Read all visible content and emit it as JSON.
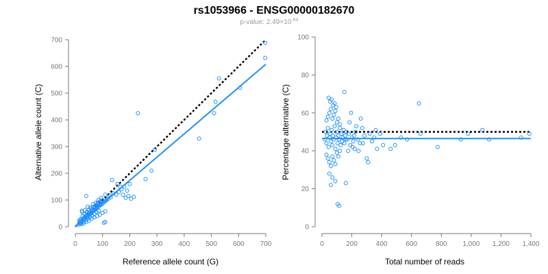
{
  "figure": {
    "title": "rs1053966 - ENSG00000182670",
    "subtitle_prefix": "p-value: 2.49×10",
    "subtitle_exp": "-64",
    "colors": {
      "points": "#1e90ff",
      "fit_line": "#1e90ff",
      "reference_line": "#000000",
      "axis": "#777777"
    }
  },
  "chart_data": [
    {
      "type": "scatter",
      "xlabel": "Reference allele count (G)",
      "ylabel": "Alternative allele count (C)",
      "xlim": [
        0,
        700
      ],
      "ylim": [
        0,
        700
      ],
      "xticks": [
        0,
        100,
        200,
        300,
        400,
        500,
        600,
        700
      ],
      "yticks": [
        0,
        100,
        200,
        300,
        400,
        500,
        600,
        700
      ],
      "xtick_labels": [
        "0",
        "100",
        "200",
        "300",
        "400",
        "500",
        "600",
        "700"
      ],
      "ytick_labels": [
        "0",
        "100",
        "200",
        "300",
        "400",
        "500",
        "600",
        "700"
      ],
      "grid": false,
      "points": [
        [
          12,
          8
        ],
        [
          15,
          14
        ],
        [
          18,
          20
        ],
        [
          20,
          16
        ],
        [
          22,
          24
        ],
        [
          25,
          20
        ],
        [
          28,
          30
        ],
        [
          30,
          26
        ],
        [
          32,
          35
        ],
        [
          35,
          28
        ],
        [
          38,
          40
        ],
        [
          40,
          34
        ],
        [
          42,
          45
        ],
        [
          45,
          38
        ],
        [
          48,
          50
        ],
        [
          50,
          44
        ],
        [
          52,
          55
        ],
        [
          55,
          48
        ],
        [
          58,
          60
        ],
        [
          60,
          52
        ],
        [
          62,
          65
        ],
        [
          65,
          58
        ],
        [
          68,
          70
        ],
        [
          70,
          62
        ],
        [
          72,
          75
        ],
        [
          75,
          66
        ],
        [
          78,
          80
        ],
        [
          80,
          70
        ],
        [
          82,
          85
        ],
        [
          85,
          74
        ],
        [
          88,
          90
        ],
        [
          90,
          80
        ],
        [
          92,
          95
        ],
        [
          95,
          82
        ],
        [
          98,
          100
        ],
        [
          100,
          86
        ],
        [
          105,
          92
        ],
        [
          110,
          96
        ],
        [
          115,
          100
        ],
        [
          120,
          104
        ],
        [
          14,
          22
        ],
        [
          18,
          28
        ],
        [
          22,
          12
        ],
        [
          26,
          40
        ],
        [
          30,
          18
        ],
        [
          34,
          48
        ],
        [
          38,
          24
        ],
        [
          42,
          55
        ],
        [
          46,
          30
        ],
        [
          50,
          62
        ],
        [
          54,
          36
        ],
        [
          58,
          68
        ],
        [
          62,
          42
        ],
        [
          66,
          74
        ],
        [
          70,
          48
        ],
        [
          74,
          80
        ],
        [
          78,
          55
        ],
        [
          82,
          88
        ],
        [
          86,
          60
        ],
        [
          90,
          94
        ],
        [
          24,
          60
        ],
        [
          35,
          62
        ],
        [
          45,
          75
        ],
        [
          55,
          72
        ],
        [
          65,
          85
        ],
        [
          75,
          90
        ],
        [
          85,
          100
        ],
        [
          95,
          108
        ],
        [
          110,
          120
        ],
        [
          125,
          118
        ],
        [
          20,
          10
        ],
        [
          30,
          12
        ],
        [
          40,
          18
        ],
        [
          50,
          22
        ],
        [
          60,
          30
        ],
        [
          70,
          35
        ],
        [
          80,
          40
        ],
        [
          90,
          45
        ],
        [
          100,
          52
        ],
        [
          110,
          58
        ],
        [
          130,
          110
        ],
        [
          140,
          125
        ],
        [
          150,
          120
        ],
        [
          160,
          130
        ],
        [
          170,
          140
        ],
        [
          180,
          150
        ],
        [
          190,
          135
        ],
        [
          200,
          160
        ],
        [
          135,
          175
        ],
        [
          155,
          160
        ],
        [
          165,
          150
        ],
        [
          175,
          120
        ],
        [
          185,
          108
        ],
        [
          195,
          115
        ],
        [
          205,
          105
        ],
        [
          215,
          112
        ],
        [
          105,
          15
        ],
        [
          110,
          18
        ],
        [
          40,
          115
        ],
        [
          25,
          55
        ],
        [
          230,
          425
        ],
        [
          258,
          178
        ],
        [
          280,
          210
        ],
        [
          292,
          288
        ],
        [
          455,
          330
        ],
        [
          510,
          425
        ],
        [
          515,
          468
        ],
        [
          528,
          555
        ],
        [
          605,
          520
        ],
        [
          698,
          632
        ],
        [
          698,
          688
        ]
      ],
      "fit_line": {
        "x": [
          0,
          700
        ],
        "y": [
          0,
          608
        ]
      },
      "reference_line": {
        "x": [
          0,
          700
        ],
        "y": [
          0,
          700
        ]
      }
    },
    {
      "type": "scatter",
      "xlabel": "Total number of reads",
      "ylabel": "Percentage alternative (C)",
      "xlim": [
        0,
        1400
      ],
      "ylim": [
        0,
        100
      ],
      "xticks": [
        0,
        200,
        400,
        600,
        800,
        1000,
        1200,
        1400
      ],
      "yticks": [
        0,
        20,
        40,
        60,
        80,
        100
      ],
      "xtick_labels": [
        "0",
        "200",
        "400",
        "600",
        "800",
        "1,000",
        "1,200",
        "1,400"
      ],
      "ytick_labels": [
        "0",
        "20",
        "40",
        "60",
        "80",
        "100"
      ],
      "grid": false,
      "points": [
        [
          20,
          46
        ],
        [
          25,
          50
        ],
        [
          30,
          44
        ],
        [
          35,
          48
        ],
        [
          40,
          52
        ],
        [
          45,
          42
        ],
        [
          50,
          47
        ],
        [
          55,
          49
        ],
        [
          60,
          45
        ],
        [
          65,
          51
        ],
        [
          70,
          43
        ],
        [
          75,
          48
        ],
        [
          80,
          46
        ],
        [
          85,
          53
        ],
        [
          90,
          41
        ],
        [
          95,
          47
        ],
        [
          100,
          50
        ],
        [
          105,
          44
        ],
        [
          110,
          48
        ],
        [
          115,
          46
        ],
        [
          120,
          52
        ],
        [
          125,
          43
        ],
        [
          130,
          49
        ],
        [
          135,
          45
        ],
        [
          140,
          47
        ],
        [
          145,
          51
        ],
        [
          150,
          44
        ],
        [
          155,
          48
        ],
        [
          160,
          46
        ],
        [
          165,
          50
        ],
        [
          30,
          56
        ],
        [
          40,
          58
        ],
        [
          50,
          60
        ],
        [
          60,
          62
        ],
        [
          70,
          57
        ],
        [
          80,
          59
        ],
        [
          90,
          61
        ],
        [
          100,
          55
        ],
        [
          110,
          57
        ],
        [
          120,
          54
        ],
        [
          30,
          38
        ],
        [
          40,
          36
        ],
        [
          50,
          34
        ],
        [
          60,
          32
        ],
        [
          70,
          37
        ],
        [
          80,
          35
        ],
        [
          90,
          33
        ],
        [
          100,
          39
        ],
        [
          110,
          37
        ],
        [
          120,
          40
        ],
        [
          45,
          68
        ],
        [
          55,
          66
        ],
        [
          65,
          67
        ],
        [
          75,
          64
        ],
        [
          85,
          65
        ],
        [
          95,
          63
        ],
        [
          50,
          28
        ],
        [
          70,
          26
        ],
        [
          90,
          24
        ],
        [
          60,
          22
        ],
        [
          150,
          71
        ],
        [
          105,
          12
        ],
        [
          115,
          11
        ],
        [
          160,
          23
        ],
        [
          175,
          40
        ],
        [
          185,
          55
        ],
        [
          195,
          60
        ],
        [
          205,
          42
        ],
        [
          215,
          48
        ],
        [
          225,
          50
        ],
        [
          240,
          46
        ],
        [
          255,
          44
        ],
        [
          270,
          52
        ],
        [
          285,
          48
        ],
        [
          300,
          36
        ],
        [
          310,
          34
        ],
        [
          320,
          49
        ],
        [
          335,
          45
        ],
        [
          350,
          47
        ],
        [
          360,
          51
        ],
        [
          170,
          46
        ],
        [
          180,
          49
        ],
        [
          190,
          43
        ],
        [
          200,
          47
        ],
        [
          210,
          45
        ],
        [
          220,
          41
        ],
        [
          230,
          53
        ],
        [
          245,
          40
        ],
        [
          260,
          57
        ],
        [
          275,
          44
        ],
        [
          370,
          41
        ],
        [
          390,
          49
        ],
        [
          410,
          43
        ],
        [
          460,
          41
        ],
        [
          490,
          43
        ],
        [
          530,
          47
        ],
        [
          570,
          46
        ],
        [
          650,
          65
        ],
        [
          660,
          49
        ],
        [
          775,
          42
        ],
        [
          930,
          46
        ],
        [
          980,
          49
        ],
        [
          1075,
          51
        ],
        [
          1120,
          46
        ],
        [
          1335,
          47
        ],
        [
          1390,
          49
        ]
      ],
      "fit_line": {
        "x": [
          0,
          1400
        ],
        "y": [
          46.5,
          46.5
        ]
      },
      "reference_line": {
        "x": [
          0,
          1400
        ],
        "y": [
          50,
          50
        ]
      }
    }
  ]
}
